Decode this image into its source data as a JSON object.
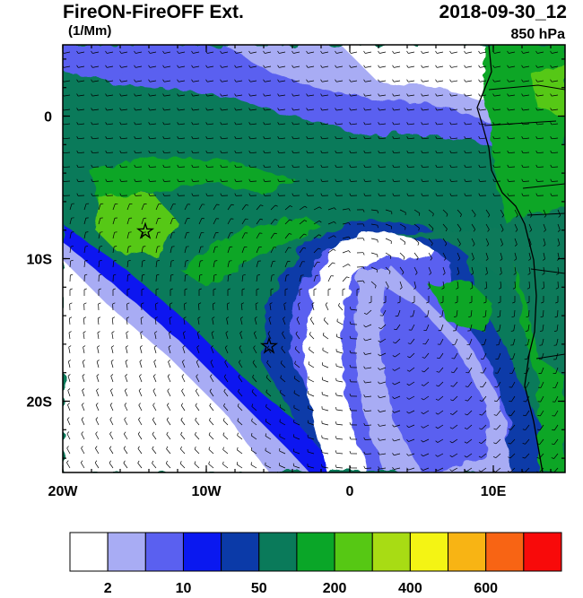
{
  "header": {
    "title": "FireON-FireOFF Ext.",
    "units": "(1/Mm)",
    "datetime": "2018-09-30_12",
    "level": "850 hPa"
  },
  "map": {
    "region": "Southeast Atlantic / West African coast",
    "lon_range": [
      -20,
      15
    ],
    "lat_range": [
      -25,
      5
    ],
    "x_ticks": [
      {
        "lon": -20,
        "label": "20W"
      },
      {
        "lon": -10,
        "label": "10W"
      },
      {
        "lon": 0,
        "label": "0"
      },
      {
        "lon": 10,
        "label": "10E"
      }
    ],
    "y_ticks": [
      {
        "lat": 0,
        "label": "0"
      },
      {
        "lat": -10,
        "label": "10S"
      },
      {
        "lat": -20,
        "label": "20S"
      }
    ],
    "markers": [
      {
        "name": "star-1",
        "lon": -14.5,
        "lat": -8
      },
      {
        "name": "star-2",
        "lon": -5.8,
        "lat": -16
      }
    ]
  },
  "colorbar": {
    "colors": [
      "#ffffff",
      "#a8acf4",
      "#5a60f0",
      "#0a18f0",
      "#0b3aa8",
      "#0a7a5a",
      "#0aa628",
      "#56c814",
      "#a8dc14",
      "#f4f414",
      "#f8b414",
      "#f86414",
      "#f80a0a"
    ],
    "labels": [
      "2",
      "10",
      "50",
      "200",
      "400",
      "600"
    ]
  }
}
